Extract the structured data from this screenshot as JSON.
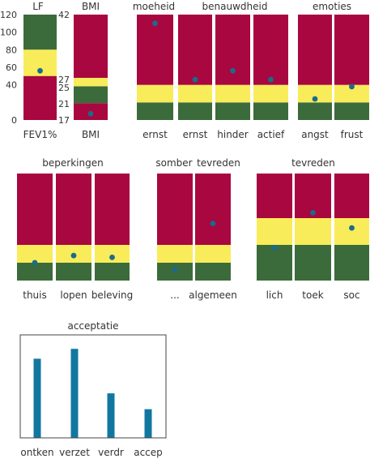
{
  "colors": {
    "red": "#a8073f",
    "yellow": "#f8ec5a",
    "green": "#3b6b3a",
    "marker": "#1a6b8a",
    "bar": "#1177a0",
    "frame": "#444444",
    "text": "#333333"
  },
  "chart_data": [
    {
      "type": "range-band",
      "title": "LF",
      "categories": [
        "FEV1%"
      ],
      "ylim": [
        0,
        120
      ],
      "yticks": [
        "0",
        "40",
        "60",
        "80",
        "100",
        "120"
      ],
      "bands": {
        "green": [
          80,
          120
        ],
        "yellow": [
          50,
          80
        ],
        "red": [
          0,
          50
        ]
      },
      "values": [
        56
      ]
    },
    {
      "type": "range-band",
      "title": "BMI",
      "categories": [
        "BMI"
      ],
      "ylim": [
        17,
        42
      ],
      "yticks": [
        "17",
        "21",
        "25",
        "27",
        "42"
      ],
      "bands": {
        "red": [
          17,
          21
        ],
        "green": [
          21,
          25
        ],
        "yellow": [
          25,
          27
        ],
        "red_high": [
          27,
          42
        ]
      },
      "values": [
        18.5
      ]
    },
    {
      "type": "range-band",
      "titles": [
        "moeheid",
        "benauwdheid",
        "emoties"
      ],
      "categories": [
        "ernst",
        "ernst",
        "hinder",
        "actief",
        "angst",
        "frust"
      ],
      "ylim": [
        0,
        6
      ],
      "bands": {
        "green": [
          0,
          1
        ],
        "yellow": [
          1,
          2
        ],
        "red": [
          2,
          6
        ]
      },
      "values": [
        5.5,
        2.3,
        2.8,
        2.3,
        1.2,
        1.9
      ]
    },
    {
      "type": "range-band",
      "title": "beperkingen",
      "categories": [
        "thuis",
        "lopen",
        "beleving"
      ],
      "ylim": [
        0,
        6
      ],
      "bands": {
        "green": [
          0,
          1
        ],
        "yellow": [
          1,
          2
        ],
        "red": [
          2,
          6
        ]
      },
      "values": [
        1.0,
        1.4,
        1.3
      ]
    },
    {
      "type": "range-band",
      "titles": [
        "somber",
        "tevreden"
      ],
      "categories": [
        "...",
        "algemeen"
      ],
      "ylim": [
        0,
        6
      ],
      "bands": {
        "green": [
          0,
          1
        ],
        "yellow": [
          1,
          2
        ],
        "red": [
          2,
          6
        ]
      },
      "values": [
        0.6,
        3.2
      ]
    },
    {
      "type": "range-band",
      "title": "tevreden",
      "categories": [
        "lich",
        "toek",
        "soc"
      ],
      "ylim": [
        0,
        6
      ],
      "bands": {
        "green": [
          0,
          2
        ],
        "yellow": [
          2,
          3.5
        ],
        "red": [
          3.5,
          6
        ]
      },
      "values": [
        1.85,
        3.8,
        2.95
      ]
    },
    {
      "type": "bar",
      "title": "acceptatie",
      "categories": [
        "ontken",
        "verzet",
        "verdr",
        "accep"
      ],
      "ylim": [
        0,
        10
      ],
      "values": [
        8.0,
        9.0,
        4.5,
        2.9
      ]
    }
  ]
}
